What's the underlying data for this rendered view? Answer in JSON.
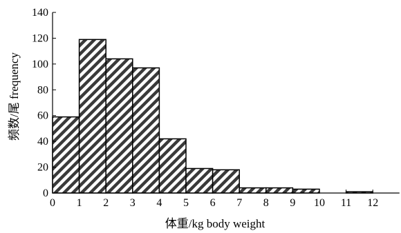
{
  "chart_data": {
    "type": "bar",
    "title": "",
    "xlabel": "体重/kg body weight",
    "ylabel": "频数/尾 frequency",
    "xlim": [
      0,
      13
    ],
    "ylim": [
      0,
      140
    ],
    "x_ticks": [
      "0",
      "1",
      "2",
      "3",
      "4",
      "5",
      "6",
      "7",
      "8",
      "9",
      "10",
      "11",
      "12"
    ],
    "y_ticks": [
      "0",
      "20",
      "40",
      "60",
      "80",
      "100",
      "120",
      "140"
    ],
    "grid": false,
    "legend": "none",
    "fill": "diagonal hatch",
    "bins": [
      {
        "start": 0,
        "end": 1,
        "value": 59
      },
      {
        "start": 1,
        "end": 2,
        "value": 119
      },
      {
        "start": 2,
        "end": 3,
        "value": 104
      },
      {
        "start": 3,
        "end": 4,
        "value": 97
      },
      {
        "start": 4,
        "end": 5,
        "value": 42
      },
      {
        "start": 5,
        "end": 6,
        "value": 19
      },
      {
        "start": 6,
        "end": 7,
        "value": 18
      },
      {
        "start": 7,
        "end": 8,
        "value": 4
      },
      {
        "start": 8,
        "end": 9,
        "value": 4
      },
      {
        "start": 9,
        "end": 10,
        "value": 3
      },
      {
        "start": 10,
        "end": 11,
        "value": 0
      },
      {
        "start": 11,
        "end": 12,
        "value": 1
      }
    ]
  }
}
